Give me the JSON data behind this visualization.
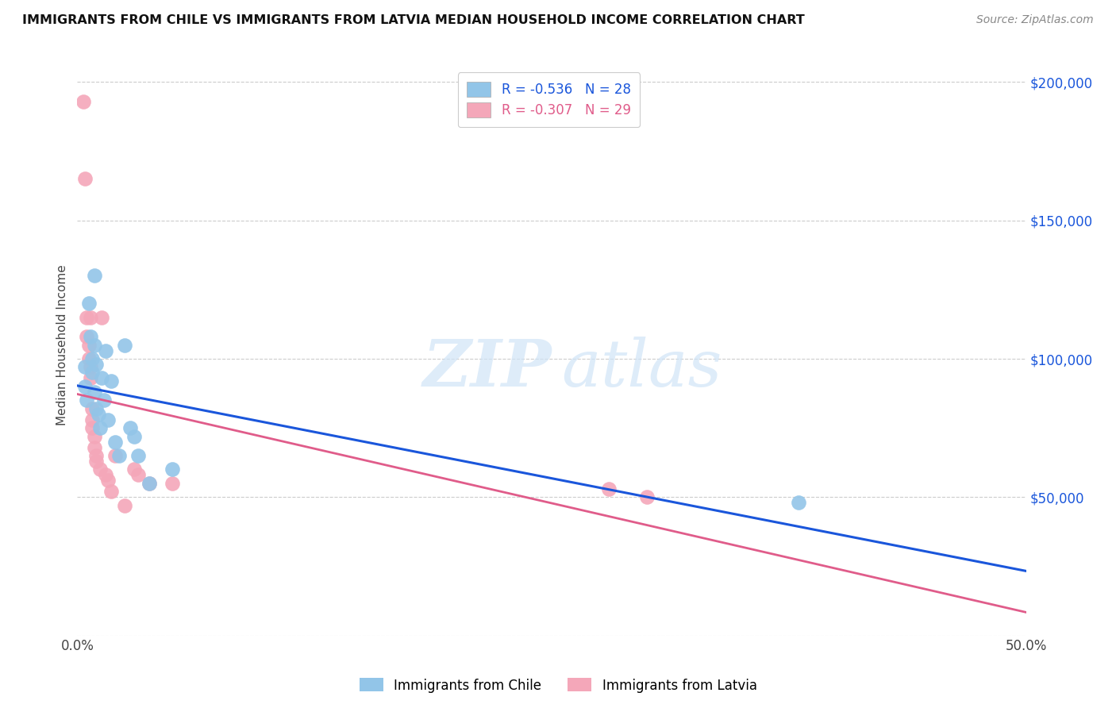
{
  "title": "IMMIGRANTS FROM CHILE VS IMMIGRANTS FROM LATVIA MEDIAN HOUSEHOLD INCOME CORRELATION CHART",
  "source": "Source: ZipAtlas.com",
  "ylabel": "Median Household Income",
  "xlim": [
    0.0,
    0.5
  ],
  "ylim": [
    0,
    210000
  ],
  "chile_color": "#92C5E8",
  "latvia_color": "#F4A7B9",
  "chile_line_color": "#1A56DB",
  "latvia_line_color": "#E05C8A",
  "chile_R": "-0.536",
  "chile_N": "28",
  "latvia_R": "-0.307",
  "latvia_N": "29",
  "chile_x": [
    0.004,
    0.004,
    0.005,
    0.006,
    0.007,
    0.008,
    0.008,
    0.009,
    0.009,
    0.009,
    0.01,
    0.01,
    0.011,
    0.012,
    0.013,
    0.014,
    0.015,
    0.016,
    0.018,
    0.02,
    0.022,
    0.025,
    0.028,
    0.03,
    0.032,
    0.038,
    0.05,
    0.38
  ],
  "chile_y": [
    97000,
    90000,
    85000,
    120000,
    108000,
    100000,
    95000,
    130000,
    105000,
    88000,
    98000,
    82000,
    80000,
    75000,
    93000,
    85000,
    103000,
    78000,
    92000,
    70000,
    65000,
    105000,
    75000,
    72000,
    65000,
    55000,
    60000,
    48000
  ],
  "latvia_x": [
    0.003,
    0.004,
    0.005,
    0.005,
    0.006,
    0.006,
    0.007,
    0.007,
    0.007,
    0.008,
    0.008,
    0.008,
    0.009,
    0.009,
    0.01,
    0.01,
    0.012,
    0.013,
    0.015,
    0.016,
    0.018,
    0.02,
    0.025,
    0.03,
    0.032,
    0.038,
    0.05,
    0.28,
    0.3
  ],
  "latvia_y": [
    193000,
    165000,
    115000,
    108000,
    105000,
    100000,
    97000,
    93000,
    115000,
    82000,
    78000,
    75000,
    72000,
    68000,
    65000,
    63000,
    60000,
    115000,
    58000,
    56000,
    52000,
    65000,
    47000,
    60000,
    58000,
    55000,
    55000,
    53000,
    50000
  ]
}
